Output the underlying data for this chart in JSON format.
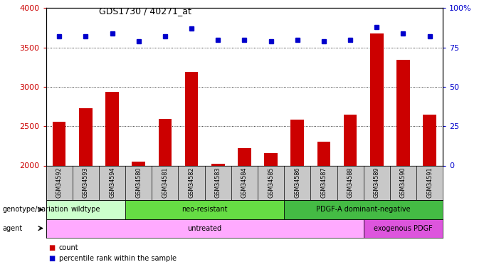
{
  "title": "GDS1730 / 40271_at",
  "samples": [
    "GSM34592",
    "GSM34593",
    "GSM34594",
    "GSM34580",
    "GSM34581",
    "GSM34582",
    "GSM34583",
    "GSM34584",
    "GSM34585",
    "GSM34586",
    "GSM34587",
    "GSM34588",
    "GSM34589",
    "GSM34590",
    "GSM34591"
  ],
  "counts": [
    2560,
    2730,
    2940,
    2050,
    2590,
    3190,
    2020,
    2220,
    2160,
    2580,
    2300,
    2650,
    3680,
    3340,
    2650
  ],
  "percentile_ranks": [
    82,
    82,
    84,
    79,
    82,
    87,
    80,
    80,
    79,
    80,
    79,
    80,
    88,
    84,
    82
  ],
  "ylim_left": [
    2000,
    4000
  ],
  "ylim_right": [
    0,
    100
  ],
  "yticks_left": [
    2000,
    2500,
    3000,
    3500,
    4000
  ],
  "yticks_right": [
    0,
    25,
    50,
    75,
    100
  ],
  "bar_color": "#cc0000",
  "dot_color": "#0000cc",
  "genotype_groups": [
    {
      "label": "wildtype",
      "start": 0,
      "end": 3,
      "color": "#ccffcc"
    },
    {
      "label": "neo-resistant",
      "start": 3,
      "end": 9,
      "color": "#66dd44"
    },
    {
      "label": "PDGF-A dominant-negative",
      "start": 9,
      "end": 15,
      "color": "#44bb44"
    }
  ],
  "agent_groups": [
    {
      "label": "untreated",
      "start": 0,
      "end": 12,
      "color": "#ffaaff"
    },
    {
      "label": "exogenous PDGF",
      "start": 12,
      "end": 15,
      "color": "#dd55dd"
    }
  ],
  "tick_label_color": "#cc0000",
  "right_tick_color": "#0000cc",
  "legend_items": [
    {
      "label": "count",
      "color": "#cc0000"
    },
    {
      "label": "percentile rank within the sample",
      "color": "#0000cc"
    }
  ],
  "row_label_genotype": "genotype/variation",
  "row_label_agent": "agent",
  "names_bg_color": "#c8c8c8"
}
